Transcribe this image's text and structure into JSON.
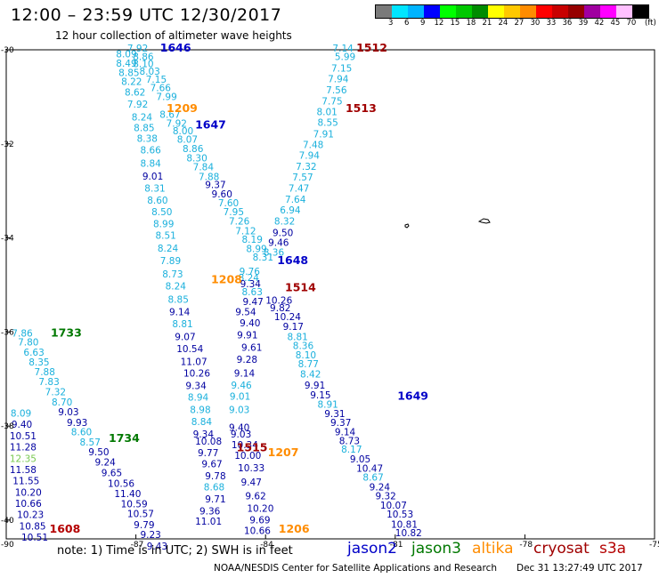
{
  "title": "12:00 – 23:59 UTC 12/30/2017",
  "subtitle": "12 hour collection of altimeter wave heights",
  "colorbar": {
    "labels": [
      "3",
      "6",
      "9",
      "12",
      "15",
      "18",
      "21",
      "24",
      "27",
      "30",
      "33",
      "36",
      "39",
      "42",
      "45",
      "70"
    ],
    "unit": "(ft)",
    "colors": [
      "#7a7a7a",
      "#00e5ff",
      "#00b4ff",
      "#0000ff",
      "#00ff00",
      "#00c800",
      "#008c00",
      "#ffff00",
      "#ffc800",
      "#ff8c00",
      "#ff0000",
      "#c80000",
      "#960000",
      "#a000a0",
      "#ff00ff",
      "#ffc0ff",
      "#000000"
    ]
  },
  "map": {
    "lat_ticks": [
      "-30",
      "-32",
      "-34",
      "-36",
      "-38",
      "-40"
    ],
    "lon_ticks": [
      "-90",
      "-87",
      "-84",
      "-81",
      "-78",
      "-75"
    ]
  },
  "colors": {
    "jason2": "#0000c8",
    "jason3": "#007800",
    "altika": "#ff8c00",
    "cryosat": "#a00000",
    "s3a": "#b40000",
    "swh_low": "#1ab0dc",
    "swh_mid": "#0000a0",
    "swh_light": "#78c850"
  },
  "time_labels": [
    {
      "t": "1646",
      "sat": "jason2",
      "lon": -86.44,
      "lat": -30.04
    },
    {
      "t": "1647",
      "sat": "jason2",
      "lon": -85.63,
      "lat": -31.67
    },
    {
      "t": "1648",
      "sat": "jason2",
      "lon": -83.73,
      "lat": -34.56
    },
    {
      "t": "1649",
      "sat": "jason2",
      "lon": -80.95,
      "lat": -37.44
    },
    {
      "t": "1209",
      "sat": "altika",
      "lon": -86.29,
      "lat": -31.32
    },
    {
      "t": "1208",
      "sat": "altika",
      "lon": -85.26,
      "lat": -34.96
    },
    {
      "t": "1207",
      "sat": "altika",
      "lon": -83.95,
      "lat": -38.64
    },
    {
      "t": "1206",
      "sat": "altika",
      "lon": -83.7,
      "lat": -40.27
    },
    {
      "t": "1512",
      "sat": "cryosat",
      "lon": -81.9,
      "lat": -30.04
    },
    {
      "t": "1513",
      "sat": "cryosat",
      "lon": -82.15,
      "lat": -31.32
    },
    {
      "t": "1514",
      "sat": "cryosat",
      "lon": -83.55,
      "lat": -35.13
    },
    {
      "t": "1515",
      "sat": "cryosat",
      "lon": -84.67,
      "lat": -38.54
    },
    {
      "t": "1608",
      "sat": "s3a",
      "lon": -89.0,
      "lat": -40.27
    },
    {
      "t": "1733",
      "sat": "jason3",
      "lon": -88.97,
      "lat": -36.1
    },
    {
      "t": "1734",
      "sat": "jason3",
      "lon": -87.63,
      "lat": -38.34
    }
  ],
  "swh_points": [
    {
      "v": "7.92",
      "lon": -87.2,
      "lat": -30.04,
      "c": "swh_low"
    },
    {
      "v": "8.09",
      "lon": -87.46,
      "lat": -30.16,
      "c": "swh_low"
    },
    {
      "v": "8.86",
      "lon": -87.07,
      "lat": -30.22,
      "c": "swh_low"
    },
    {
      "v": "8.49",
      "lon": -87.46,
      "lat": -30.36,
      "c": "swh_low"
    },
    {
      "v": "8.10",
      "lon": -87.07,
      "lat": -30.37,
      "c": "swh_low"
    },
    {
      "v": "8.03",
      "lon": -86.92,
      "lat": -30.53,
      "c": "swh_low"
    },
    {
      "v": "8.85",
      "lon": -87.4,
      "lat": -30.56,
      "c": "swh_low"
    },
    {
      "v": "7.15",
      "lon": -86.77,
      "lat": -30.7,
      "c": "swh_low"
    },
    {
      "v": "8.22",
      "lon": -87.34,
      "lat": -30.75,
      "c": "swh_low"
    },
    {
      "v": "7.66",
      "lon": -86.67,
      "lat": -30.88,
      "c": "swh_low"
    },
    {
      "v": "8.62",
      "lon": -87.26,
      "lat": -30.97,
      "c": "swh_low"
    },
    {
      "v": "7.99",
      "lon": -86.53,
      "lat": -31.07,
      "c": "swh_low"
    },
    {
      "v": "7.92",
      "lon": -87.2,
      "lat": -31.23,
      "c": "swh_low"
    },
    {
      "v": "8.67",
      "lon": -86.45,
      "lat": -31.45,
      "c": "swh_low"
    },
    {
      "v": "8.24",
      "lon": -87.1,
      "lat": -31.5,
      "c": "swh_low"
    },
    {
      "v": "7.92",
      "lon": -86.3,
      "lat": -31.64,
      "c": "swh_low"
    },
    {
      "v": "8.85",
      "lon": -87.05,
      "lat": -31.73,
      "c": "swh_low"
    },
    {
      "v": "8.00",
      "lon": -86.15,
      "lat": -31.8,
      "c": "swh_low"
    },
    {
      "v": "8.38",
      "lon": -86.98,
      "lat": -31.96,
      "c": "swh_low"
    },
    {
      "v": "8.07",
      "lon": -86.05,
      "lat": -31.98,
      "c": "swh_low"
    },
    {
      "v": "8.66",
      "lon": -86.9,
      "lat": -32.2,
      "c": "swh_low"
    },
    {
      "v": "8.86",
      "lon": -85.92,
      "lat": -32.17,
      "c": "swh_low"
    },
    {
      "v": "8.30",
      "lon": -85.83,
      "lat": -32.37,
      "c": "swh_low"
    },
    {
      "v": "8.84",
      "lon": -86.9,
      "lat": -32.49,
      "c": "swh_low"
    },
    {
      "v": "7.84",
      "lon": -85.68,
      "lat": -32.56,
      "c": "swh_low"
    },
    {
      "v": "9.01",
      "lon": -86.85,
      "lat": -32.76,
      "c": "swh_mid"
    },
    {
      "v": "7.88",
      "lon": -85.55,
      "lat": -32.77,
      "c": "swh_low"
    },
    {
      "v": "9.37",
      "lon": -85.4,
      "lat": -32.94,
      "c": "swh_mid"
    },
    {
      "v": "8.31",
      "lon": -86.8,
      "lat": -33.02,
      "c": "swh_low"
    },
    {
      "v": "9.60",
      "lon": -85.25,
      "lat": -33.14,
      "c": "swh_mid"
    },
    {
      "v": "8.60",
      "lon": -86.74,
      "lat": -33.27,
      "c": "swh_low"
    },
    {
      "v": "7.60",
      "lon": -85.1,
      "lat": -33.33,
      "c": "swh_low"
    },
    {
      "v": "8.50",
      "lon": -86.64,
      "lat": -33.52,
      "c": "swh_low"
    },
    {
      "v": "7.95",
      "lon": -84.98,
      "lat": -33.52,
      "c": "swh_low"
    },
    {
      "v": "8.99",
      "lon": -86.6,
      "lat": -33.77,
      "c": "swh_low"
    },
    {
      "v": "7.26",
      "lon": -84.85,
      "lat": -33.72,
      "c": "swh_low"
    },
    {
      "v": "7.12",
      "lon": -84.7,
      "lat": -33.92,
      "c": "swh_low"
    },
    {
      "v": "8.51",
      "lon": -86.55,
      "lat": -34.02,
      "c": "swh_low"
    },
    {
      "v": "8.19",
      "lon": -84.55,
      "lat": -34.1,
      "c": "swh_low"
    },
    {
      "v": "8.24",
      "lon": -86.5,
      "lat": -34.29,
      "c": "swh_low"
    },
    {
      "v": "8.99",
      "lon": -84.45,
      "lat": -34.3,
      "c": "swh_low"
    },
    {
      "v": "7.89",
      "lon": -86.44,
      "lat": -34.56,
      "c": "swh_low"
    },
    {
      "v": "8.31",
      "lon": -84.3,
      "lat": -34.48,
      "c": "swh_low"
    },
    {
      "v": "8.73",
      "lon": -86.39,
      "lat": -34.84,
      "c": "swh_low"
    },
    {
      "v": "8.24",
      "lon": -86.32,
      "lat": -35.1,
      "c": "swh_low"
    },
    {
      "v": "8.85",
      "lon": -86.26,
      "lat": -35.38,
      "c": "swh_low"
    },
    {
      "v": "9.14",
      "lon": -86.23,
      "lat": -35.64,
      "c": "swh_mid"
    },
    {
      "v": "8.81",
      "lon": -86.16,
      "lat": -35.9,
      "c": "swh_low"
    },
    {
      "v": "9.07",
      "lon": -86.1,
      "lat": -36.17,
      "c": "swh_mid"
    },
    {
      "v": "10.54",
      "lon": -86.06,
      "lat": -36.43,
      "c": "swh_mid"
    },
    {
      "v": "11.07",
      "lon": -85.97,
      "lat": -36.7,
      "c": "swh_mid"
    },
    {
      "v": "10.26",
      "lon": -85.9,
      "lat": -36.95,
      "c": "swh_mid"
    },
    {
      "v": "9.34",
      "lon": -85.85,
      "lat": -37.21,
      "c": "swh_mid"
    },
    {
      "v": "8.94",
      "lon": -85.8,
      "lat": -37.46,
      "c": "swh_low"
    },
    {
      "v": "8.98",
      "lon": -85.75,
      "lat": -37.72,
      "c": "swh_low"
    },
    {
      "v": "8.84",
      "lon": -85.72,
      "lat": -37.98,
      "c": "swh_low"
    },
    {
      "v": "9.34",
      "lon": -85.68,
      "lat": -38.24,
      "c": "swh_mid"
    },
    {
      "v": "10.08",
      "lon": -85.63,
      "lat": -38.4,
      "c": "swh_mid"
    },
    {
      "v": "9.77",
      "lon": -85.57,
      "lat": -38.64,
      "c": "swh_mid"
    },
    {
      "v": "9.67",
      "lon": -85.48,
      "lat": -38.88,
      "c": "swh_mid"
    },
    {
      "v": "9.78",
      "lon": -85.4,
      "lat": -39.13,
      "c": "swh_mid"
    },
    {
      "v": "8.68",
      "lon": -85.43,
      "lat": -39.37,
      "c": "swh_low"
    },
    {
      "v": "9.71",
      "lon": -85.4,
      "lat": -39.62,
      "c": "swh_mid"
    },
    {
      "v": "9.36",
      "lon": -85.53,
      "lat": -39.88,
      "c": "swh_mid"
    },
    {
      "v": "11.01",
      "lon": -85.63,
      "lat": -40.1,
      "c": "swh_mid"
    },
    {
      "v": "9.76",
      "lon": -84.61,
      "lat": -34.78,
      "c": "swh_low"
    },
    {
      "v": "8.24",
      "lon": -84.63,
      "lat": -34.92,
      "c": "swh_low"
    },
    {
      "v": "9.34",
      "lon": -84.59,
      "lat": -35.05,
      "c": "swh_mid"
    },
    {
      "v": "8.63",
      "lon": -84.55,
      "lat": -35.22,
      "c": "swh_low"
    },
    {
      "v": "9.47",
      "lon": -84.53,
      "lat": -35.43,
      "c": "swh_mid"
    },
    {
      "v": "9.54",
      "lon": -84.7,
      "lat": -35.64,
      "c": "swh_mid"
    },
    {
      "v": "9.40",
      "lon": -84.6,
      "lat": -35.88,
      "c": "swh_mid"
    },
    {
      "v": "9.91",
      "lon": -84.66,
      "lat": -36.14,
      "c": "swh_mid"
    },
    {
      "v": "9.61",
      "lon": -84.56,
      "lat": -36.4,
      "c": "swh_mid"
    },
    {
      "v": "9.28",
      "lon": -84.67,
      "lat": -36.66,
      "c": "swh_mid"
    },
    {
      "v": "9.14",
      "lon": -84.73,
      "lat": -36.95,
      "c": "swh_mid"
    },
    {
      "v": "9.46",
      "lon": -84.8,
      "lat": -37.2,
      "c": "swh_low"
    },
    {
      "v": "9.01",
      "lon": -84.83,
      "lat": -37.44,
      "c": "swh_low"
    },
    {
      "v": "9.03",
      "lon": -84.85,
      "lat": -37.72,
      "c": "swh_low"
    },
    {
      "v": "9.40",
      "lon": -84.85,
      "lat": -38.1,
      "c": "swh_mid"
    },
    {
      "v": "9.03",
      "lon": -84.81,
      "lat": -38.24,
      "c": "swh_mid"
    },
    {
      "v": "10.34",
      "lon": -84.79,
      "lat": -38.47,
      "c": "swh_mid"
    },
    {
      "v": "10.00",
      "lon": -84.72,
      "lat": -38.7,
      "c": "swh_mid"
    },
    {
      "v": "10.33",
      "lon": -84.64,
      "lat": -38.96,
      "c": "swh_mid"
    },
    {
      "v": "9.47",
      "lon": -84.57,
      "lat": -39.27,
      "c": "swh_mid"
    },
    {
      "v": "9.62",
      "lon": -84.47,
      "lat": -39.56,
      "c": "swh_mid"
    },
    {
      "v": "10.20",
      "lon": -84.43,
      "lat": -39.82,
      "c": "swh_mid"
    },
    {
      "v": "9.69",
      "lon": -84.37,
      "lat": -40.07,
      "c": "swh_mid"
    },
    {
      "v": "10.66",
      "lon": -84.5,
      "lat": -40.3,
      "c": "swh_mid"
    },
    {
      "v": "7.14",
      "lon": -82.45,
      "lat": -30.04,
      "c": "swh_low"
    },
    {
      "v": "5.99",
      "lon": -82.4,
      "lat": -30.22,
      "c": "swh_low"
    },
    {
      "v": "7.15",
      "lon": -82.48,
      "lat": -30.46,
      "c": "swh_low"
    },
    {
      "v": "7.94",
      "lon": -82.56,
      "lat": -30.69,
      "c": "swh_low"
    },
    {
      "v": "7.56",
      "lon": -82.6,
      "lat": -30.93,
      "c": "swh_low"
    },
    {
      "v": "7.75",
      "lon": -82.7,
      "lat": -31.16,
      "c": "swh_low"
    },
    {
      "v": "8.01",
      "lon": -82.82,
      "lat": -31.39,
      "c": "swh_low"
    },
    {
      "v": "8.55",
      "lon": -82.8,
      "lat": -31.62,
      "c": "swh_low"
    },
    {
      "v": "7.91",
      "lon": -82.9,
      "lat": -31.86,
      "c": "swh_low"
    },
    {
      "v": "7.48",
      "lon": -83.14,
      "lat": -32.09,
      "c": "swh_low"
    },
    {
      "v": "7.94",
      "lon": -83.23,
      "lat": -32.32,
      "c": "swh_low"
    },
    {
      "v": "7.32",
      "lon": -83.3,
      "lat": -32.55,
      "c": "swh_low"
    },
    {
      "v": "7.57",
      "lon": -83.38,
      "lat": -32.78,
      "c": "swh_low"
    },
    {
      "v": "7.47",
      "lon": -83.47,
      "lat": -33.02,
      "c": "swh_low"
    },
    {
      "v": "7.64",
      "lon": -83.55,
      "lat": -33.25,
      "c": "swh_low"
    },
    {
      "v": "6.94",
      "lon": -83.67,
      "lat": -33.48,
      "c": "swh_low"
    },
    {
      "v": "8.32",
      "lon": -83.8,
      "lat": -33.72,
      "c": "swh_low"
    },
    {
      "v": "9.50",
      "lon": -83.84,
      "lat": -33.96,
      "c": "swh_mid"
    },
    {
      "v": "9.46",
      "lon": -83.94,
      "lat": -34.17,
      "c": "swh_mid"
    },
    {
      "v": "8.36",
      "lon": -84.05,
      "lat": -34.38,
      "c": "swh_low"
    },
    {
      "v": "10.26",
      "lon": -84.0,
      "lat": -35.4,
      "c": "swh_mid"
    },
    {
      "v": "9.82",
      "lon": -83.9,
      "lat": -35.56,
      "c": "swh_mid"
    },
    {
      "v": "10.24",
      "lon": -83.8,
      "lat": -35.75,
      "c": "swh_mid"
    },
    {
      "v": "9.17",
      "lon": -83.6,
      "lat": -35.96,
      "c": "swh_mid"
    },
    {
      "v": "8.81",
      "lon": -83.5,
      "lat": -36.17,
      "c": "swh_low"
    },
    {
      "v": "8.36",
      "lon": -83.37,
      "lat": -36.36,
      "c": "swh_low"
    },
    {
      "v": "8.10",
      "lon": -83.31,
      "lat": -36.56,
      "c": "swh_low"
    },
    {
      "v": "8.77",
      "lon": -83.25,
      "lat": -36.75,
      "c": "swh_low"
    },
    {
      "v": "8.42",
      "lon": -83.2,
      "lat": -36.97,
      "c": "swh_low"
    },
    {
      "v": "9.91",
      "lon": -83.1,
      "lat": -37.2,
      "c": "swh_mid"
    },
    {
      "v": "9.15",
      "lon": -82.97,
      "lat": -37.41,
      "c": "swh_mid"
    },
    {
      "v": "8.91",
      "lon": -82.8,
      "lat": -37.61,
      "c": "swh_low"
    },
    {
      "v": "9.31",
      "lon": -82.64,
      "lat": -37.81,
      "c": "swh_mid"
    },
    {
      "v": "9.37",
      "lon": -82.5,
      "lat": -38.0,
      "c": "swh_mid"
    },
    {
      "v": "9.14",
      "lon": -82.4,
      "lat": -38.2,
      "c": "swh_mid"
    },
    {
      "v": "8.73",
      "lon": -82.3,
      "lat": -38.39,
      "c": "swh_mid"
    },
    {
      "v": "8.17",
      "lon": -82.25,
      "lat": -38.57,
      "c": "swh_low"
    },
    {
      "v": "9.05",
      "lon": -82.05,
      "lat": -38.77,
      "c": "swh_mid"
    },
    {
      "v": "10.47",
      "lon": -81.9,
      "lat": -38.97,
      "c": "swh_mid"
    },
    {
      "v": "8.67",
      "lon": -81.75,
      "lat": -39.16,
      "c": "swh_low"
    },
    {
      "v": "9.24",
      "lon": -81.6,
      "lat": -39.37,
      "c": "swh_mid"
    },
    {
      "v": "9.32",
      "lon": -81.46,
      "lat": -39.56,
      "c": "swh_mid"
    },
    {
      "v": "10.07",
      "lon": -81.35,
      "lat": -39.76,
      "c": "swh_mid"
    },
    {
      "v": "10.53",
      "lon": -81.2,
      "lat": -39.95,
      "c": "swh_mid"
    },
    {
      "v": "10.81",
      "lon": -81.1,
      "lat": -40.16,
      "c": "swh_mid"
    },
    {
      "v": "10.82",
      "lon": -81.0,
      "lat": -40.34,
      "c": "swh_mid"
    },
    {
      "v": "7.86",
      "lon": -89.87,
      "lat": -36.1,
      "c": "swh_low"
    },
    {
      "v": "7.80",
      "lon": -89.73,
      "lat": -36.29,
      "c": "swh_low"
    },
    {
      "v": "6.63",
      "lon": -89.6,
      "lat": -36.5,
      "c": "swh_low"
    },
    {
      "v": "8.35",
      "lon": -89.48,
      "lat": -36.71,
      "c": "swh_low"
    },
    {
      "v": "7.88",
      "lon": -89.35,
      "lat": -36.92,
      "c": "swh_low"
    },
    {
      "v": "7.83",
      "lon": -89.25,
      "lat": -37.13,
      "c": "swh_low"
    },
    {
      "v": "7.32",
      "lon": -89.1,
      "lat": -37.35,
      "c": "swh_low"
    },
    {
      "v": "8.70",
      "lon": -88.95,
      "lat": -37.56,
      "c": "swh_low"
    },
    {
      "v": "9.03",
      "lon": -88.8,
      "lat": -37.77,
      "c": "swh_mid"
    },
    {
      "v": "9.93",
      "lon": -88.6,
      "lat": -38.0,
      "c": "swh_mid"
    },
    {
      "v": "8.60",
      "lon": -88.5,
      "lat": -38.2,
      "c": "swh_low"
    },
    {
      "v": "8.57",
      "lon": -88.3,
      "lat": -38.41,
      "c": "swh_low"
    },
    {
      "v": "9.50",
      "lon": -88.1,
      "lat": -38.62,
      "c": "swh_mid"
    },
    {
      "v": "9.24",
      "lon": -87.95,
      "lat": -38.84,
      "c": "swh_mid"
    },
    {
      "v": "9.65",
      "lon": -87.8,
      "lat": -39.07,
      "c": "swh_mid"
    },
    {
      "v": "10.56",
      "lon": -87.65,
      "lat": -39.29,
      "c": "swh_mid"
    },
    {
      "v": "11.40",
      "lon": -87.5,
      "lat": -39.51,
      "c": "swh_mid"
    },
    {
      "v": "10.59",
      "lon": -87.35,
      "lat": -39.73,
      "c": "swh_mid"
    },
    {
      "v": "10.57",
      "lon": -87.2,
      "lat": -39.94,
      "c": "swh_mid"
    },
    {
      "v": "9.79",
      "lon": -87.05,
      "lat": -40.17,
      "c": "swh_mid"
    },
    {
      "v": "9.23",
      "lon": -86.9,
      "lat": -40.38,
      "c": "swh_mid"
    },
    {
      "v": "9.43",
      "lon": -86.75,
      "lat": -40.63,
      "c": "swh_mid"
    },
    {
      "v": "8.09",
      "lon": -89.9,
      "lat": -37.8,
      "c": "swh_low"
    },
    {
      "v": "9.40",
      "lon": -89.88,
      "lat": -38.04,
      "c": "swh_mid"
    },
    {
      "v": "10.51",
      "lon": -89.92,
      "lat": -38.28,
      "c": "swh_mid"
    },
    {
      "v": "11.28",
      "lon": -89.92,
      "lat": -38.52,
      "c": "swh_mid"
    },
    {
      "v": "12.35",
      "lon": -89.92,
      "lat": -38.76,
      "c": "swh_light"
    },
    {
      "v": "11.58",
      "lon": -89.92,
      "lat": -39.0,
      "c": "swh_mid"
    },
    {
      "v": "11.55",
      "lon": -89.85,
      "lat": -39.24,
      "c": "swh_mid"
    },
    {
      "v": "10.20",
      "lon": -89.8,
      "lat": -39.48,
      "c": "swh_mid"
    },
    {
      "v": "10.66",
      "lon": -89.8,
      "lat": -39.72,
      "c": "swh_mid"
    },
    {
      "v": "10.23",
      "lon": -89.75,
      "lat": -39.96,
      "c": "swh_mid"
    },
    {
      "v": "10.85",
      "lon": -89.7,
      "lat": -40.2,
      "c": "swh_mid"
    },
    {
      "v": "10.51",
      "lon": -89.65,
      "lat": -40.44,
      "c": "swh_mid"
    }
  ],
  "legend": {
    "note": "note:  1) Time is in UTC;  2) SWH is in feet",
    "satellites": [
      {
        "name": "jason2",
        "color": "#0000c8"
      },
      {
        "name": "jason3",
        "color": "#007800"
      },
      {
        "name": "altika",
        "color": "#ff8c00"
      },
      {
        "name": "cryosat",
        "color": "#a00000"
      },
      {
        "name": "s3a",
        "color": "#b40000"
      }
    ]
  },
  "credit": "NOAA/NESDIS Center for Satellite Applications and Research",
  "timestamp": "Dec 31 13:27:49 UTC 2017"
}
